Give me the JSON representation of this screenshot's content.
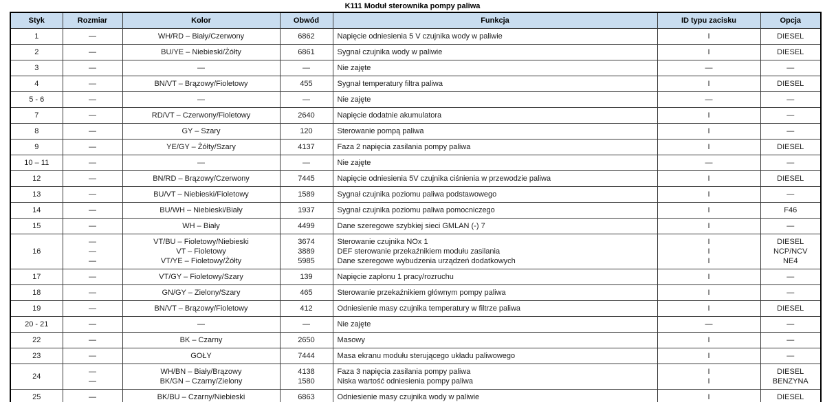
{
  "title": "K111 Moduł sterownika pompy paliwa",
  "colors": {
    "header_bg": "#c9ddf0",
    "border": "#3a3a3a",
    "text": "#1c1c1c",
    "page_bg": "#ffffff"
  },
  "table": {
    "headers": [
      "Styk",
      "Rozmiar",
      "Kolor",
      "Obwód",
      "Funkcja",
      "ID typu zacisku",
      "Opcja"
    ],
    "column_keys": [
      "styk",
      "rozmiar",
      "kolor",
      "obwod",
      "funkcja",
      "id_typu_zacisku",
      "opcja"
    ],
    "rows": [
      {
        "styk": "1",
        "rozmiar": "—",
        "kolor": "WH/RD – Biały/Czerwony",
        "obwod": "6862",
        "funkcja": "Napięcie odniesienia 5 V czujnika wody w paliwie",
        "id_typu_zacisku": "I",
        "opcja": "DIESEL"
      },
      {
        "styk": "2",
        "rozmiar": "—",
        "kolor": "BU/YE – Niebieski/Żółty",
        "obwod": "6861",
        "funkcja": "Sygnał czujnika wody w paliwie",
        "id_typu_zacisku": "I",
        "opcja": "DIESEL"
      },
      {
        "styk": "3",
        "rozmiar": "—",
        "kolor": "—",
        "obwod": "—",
        "funkcja": "Nie zajęte",
        "id_typu_zacisku": "—",
        "opcja": "—"
      },
      {
        "styk": "4",
        "rozmiar": "—",
        "kolor": "BN/VT – Brązowy/Fioletowy",
        "obwod": "455",
        "funkcja": "Sygnał temperatury filtra paliwa",
        "id_typu_zacisku": "I",
        "opcja": "DIESEL"
      },
      {
        "styk": "5 - 6",
        "rozmiar": "—",
        "kolor": "—",
        "obwod": "—",
        "funkcja": "Nie zajęte",
        "id_typu_zacisku": "—",
        "opcja": "—"
      },
      {
        "styk": "7",
        "rozmiar": "—",
        "kolor": "RD/VT – Czerwony/Fioletowy",
        "obwod": "2640",
        "funkcja": "Napięcie dodatnie akumulatora",
        "id_typu_zacisku": "I",
        "opcja": "—"
      },
      {
        "styk": "8",
        "rozmiar": "—",
        "kolor": "GY – Szary",
        "obwod": "120",
        "funkcja": "Sterowanie pompą paliwa",
        "id_typu_zacisku": "I",
        "opcja": "—"
      },
      {
        "styk": "9",
        "rozmiar": "—",
        "kolor": "YE/GY – Żółty/Szary",
        "obwod": "4137",
        "funkcja": "Faza 2 napięcia zasilania pompy paliwa",
        "id_typu_zacisku": "I",
        "opcja": "DIESEL"
      },
      {
        "styk": "10 – 11",
        "rozmiar": "—",
        "kolor": "—",
        "obwod": "—",
        "funkcja": "Nie zajęte",
        "id_typu_zacisku": "—",
        "opcja": "—"
      },
      {
        "styk": "12",
        "rozmiar": "—",
        "kolor": "BN/RD – Brązowy/Czerwony",
        "obwod": "7445",
        "funkcja": "Napięcie odniesienia 5V czujnika ciśnienia w przewodzie paliwa",
        "id_typu_zacisku": "I",
        "opcja": "DIESEL"
      },
      {
        "styk": "13",
        "rozmiar": "—",
        "kolor": "BU/VT – Niebieski/Fioletowy",
        "obwod": "1589",
        "funkcja": "Sygnał czujnika poziomu paliwa podstawowego",
        "id_typu_zacisku": "I",
        "opcja": "—"
      },
      {
        "styk": "14",
        "rozmiar": "—",
        "kolor": "BU/WH – Niebieski/Biały",
        "obwod": "1937",
        "funkcja": "Sygnał czujnika poziomu paliwa pomocniczego",
        "id_typu_zacisku": "I",
        "opcja": "F46"
      },
      {
        "styk": "15",
        "rozmiar": "—",
        "kolor": "WH – Biały",
        "obwod": "4499",
        "funkcja": "Dane szeregowe szybkiej sieci GMLAN (-) 7",
        "id_typu_zacisku": "I",
        "opcja": "—"
      },
      {
        "styk": "16",
        "rozmiar": "—\n—\n—",
        "kolor": "VT/BU – Fioletowy/Niebieski\nVT – Fioletowy\nVT/YE – Fioletowy/Żółty",
        "obwod": "3674\n3889\n5985",
        "funkcja": "Sterowanie czujnika NOx 1\nDEF sterowanie przekaźnikiem modułu zasilania\nDane szeregowe wybudzenia urządzeń dodatkowych",
        "id_typu_zacisku": "I\nI\nI",
        "opcja": "DIESEL\nNCP/NCV\nNE4"
      },
      {
        "styk": "17",
        "rozmiar": "—",
        "kolor": "VT/GY – Fioletowy/Szary",
        "obwod": "139",
        "funkcja": "Napięcie zapłonu 1 pracy/rozruchu",
        "id_typu_zacisku": "I",
        "opcja": "—"
      },
      {
        "styk": "18",
        "rozmiar": "—",
        "kolor": "GN/GY – Zielony/Szary",
        "obwod": "465",
        "funkcja": "Sterowanie przekaźnikiem głównym pompy paliwa",
        "id_typu_zacisku": "I",
        "opcja": "—"
      },
      {
        "styk": "19",
        "rozmiar": "—",
        "kolor": "BN/VT – Brązowy/Fioletowy",
        "obwod": "412",
        "funkcja": "Odniesienie masy czujnika temperatury w filtrze paliwa",
        "id_typu_zacisku": "I",
        "opcja": "DIESEL"
      },
      {
        "styk": "20 - 21",
        "rozmiar": "—",
        "kolor": "—",
        "obwod": "—",
        "funkcja": "Nie zajęte",
        "id_typu_zacisku": "—",
        "opcja": "—"
      },
      {
        "styk": "22",
        "rozmiar": "—",
        "kolor": "BK – Czarny",
        "obwod": "2650",
        "funkcja": "Masowy",
        "id_typu_zacisku": "I",
        "opcja": "—"
      },
      {
        "styk": "23",
        "rozmiar": "—",
        "kolor": "GOŁY",
        "obwod": "7444",
        "funkcja": "Masa ekranu modułu sterującego układu paliwowego",
        "id_typu_zacisku": "I",
        "opcja": "—"
      },
      {
        "styk": "24",
        "rozmiar": "—\n—",
        "kolor": "WH/BN – Biały/Brązowy\nBK/GN – Czarny/Zielony",
        "obwod": "4138\n1580",
        "funkcja": "Faza 3 napięcia zasilania pompy paliwa\nNiska wartość odniesienia pompy paliwa",
        "id_typu_zacisku": "I\nI",
        "opcja": "DIESEL\nBENZYNA"
      },
      {
        "styk": "25",
        "rozmiar": "—",
        "kolor": "BK/BU – Czarny/Niebieski",
        "obwod": "6863",
        "funkcja": "Odniesienie masy czujnika wody w paliwie",
        "id_typu_zacisku": "I",
        "opcja": "DIESEL"
      }
    ]
  }
}
